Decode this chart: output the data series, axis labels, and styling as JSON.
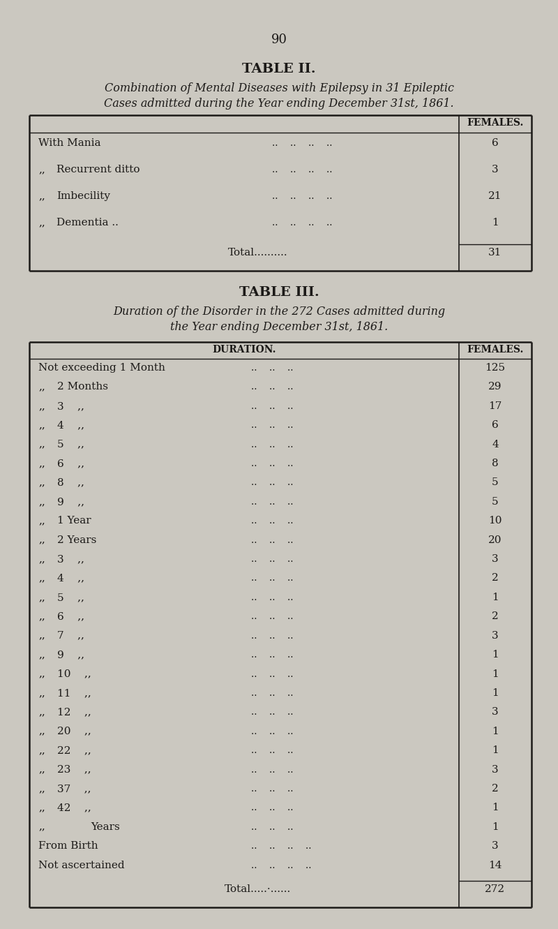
{
  "page_number": "90",
  "bg_color": "#cbc8c0",
  "table2": {
    "title": "TABLE II.",
    "subtitle_line1": "Combination of Mental Diseases with Epilepsy in 31 Epileptic",
    "subtitle_line2": "Cases admitted during the Year ending December 31st, 1861.",
    "col_header": "FEMALES.",
    "rows": [
      {
        "label": "With Mania",
        "prefix": false,
        "dots": "..    ..    ..    ..",
        "value": "6"
      },
      {
        "label": "Recurrent ditto",
        "prefix": true,
        "dots": "..    ..    ..    ..",
        "value": "3"
      },
      {
        "label": "Imbecility",
        "prefix": true,
        "dots": "..    ..    ..    ..",
        "value": "21"
      },
      {
        "label": "Dementia ..",
        "prefix": true,
        "dots": "..    ..    ..    ..",
        "value": "1"
      }
    ],
    "total_label": "Total..........",
    "total_value": "31"
  },
  "table3": {
    "title": "TABLE III.",
    "subtitle_line1": "Duration of the Disorder in the 272 Cases admitted during",
    "subtitle_line2": "the Year ending December 31st, 1861.",
    "col1_header": "DURATION.",
    "col2_header": "FEMALES.",
    "rows": [
      {
        "label": "Not exceeding 1 Month",
        "indent": 0,
        "dots": "..    ..    ..",
        "value": "125"
      },
      {
        "label": "2 Months",
        "indent": 1,
        "dots": "..    ..    ..",
        "value": "29"
      },
      {
        "label": "3    ,,",
        "indent": 1,
        "dots": "..    ..    ..",
        "value": "17"
      },
      {
        "label": "4    ,,",
        "indent": 1,
        "dots": "..    ..    ..",
        "value": "6"
      },
      {
        "label": "5    ,,",
        "indent": 1,
        "dots": "..    ..    ..",
        "value": "4"
      },
      {
        "label": "6    ,,",
        "indent": 1,
        "dots": "..    ..    ..",
        "value": "8"
      },
      {
        "label": "8    ,,",
        "indent": 1,
        "dots": "..    ..    ..",
        "value": "5"
      },
      {
        "label": "9    ,,",
        "indent": 1,
        "dots": "..    ..    ..",
        "value": "5"
      },
      {
        "label": "1 Year",
        "indent": 1,
        "dots": "..    ..    ..",
        "value": "10"
      },
      {
        "label": "2 Years",
        "indent": 1,
        "dots": "..    ..    ..",
        "value": "20"
      },
      {
        "label": "3    ,,",
        "indent": 1,
        "dots": "..    ..    ..",
        "value": "3"
      },
      {
        "label": "4    ,,",
        "indent": 1,
        "dots": "..    ..    ..",
        "value": "2"
      },
      {
        "label": "5    ,,",
        "indent": 1,
        "dots": "..    ..    ..",
        "value": "1"
      },
      {
        "label": "6    ,,",
        "indent": 1,
        "dots": "..    ..    ..",
        "value": "2"
      },
      {
        "label": "7    ,,",
        "indent": 1,
        "dots": "..    ..    ..",
        "value": "3"
      },
      {
        "label": "9    ,,",
        "indent": 1,
        "dots": "..    ..    ..",
        "value": "1"
      },
      {
        "label": "10    ,,",
        "indent": 1,
        "dots": "..    ..    ..",
        "value": "1"
      },
      {
        "label": "11    ,,",
        "indent": 1,
        "dots": "..    ..    ..",
        "value": "1"
      },
      {
        "label": "12    ,,",
        "indent": 1,
        "dots": "..    ..    ..",
        "value": "3"
      },
      {
        "label": "20    ,,",
        "indent": 1,
        "dots": "..    ..    ..",
        "value": "1"
      },
      {
        "label": "22    ,,",
        "indent": 1,
        "dots": "..    ..    ..",
        "value": "1"
      },
      {
        "label": "23    ,,",
        "indent": 1,
        "dots": "..    ..    ..",
        "value": "3"
      },
      {
        "label": "37    ,,",
        "indent": 1,
        "dots": "..    ..    ..",
        "value": "2"
      },
      {
        "label": "42    ,,",
        "indent": 1,
        "dots": "..    ..    ..",
        "value": "1"
      },
      {
        "label": "Years",
        "indent": 2,
        "dots": "..    ..    ..",
        "value": "1"
      },
      {
        "label": "From Birth",
        "indent": 0,
        "dots": "..    ..    ..    ..",
        "value": "3"
      },
      {
        "label": "Not ascertained",
        "indent": 0,
        "dots": "..    ..    ..    ..",
        "value": "14"
      }
    ],
    "total_label": "Total.....·......",
    "total_value": "272"
  }
}
